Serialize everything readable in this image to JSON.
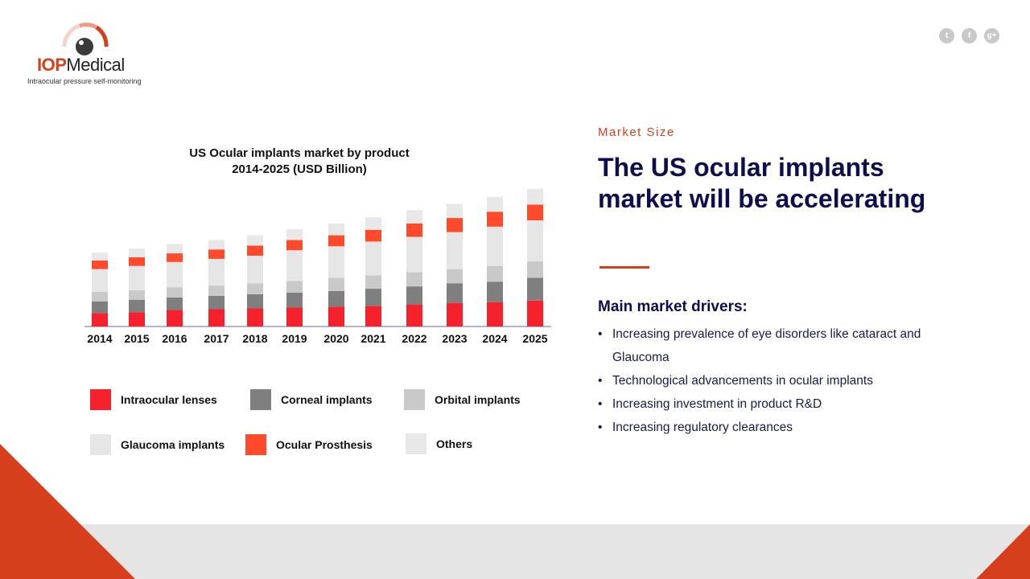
{
  "brand": {
    "name_part1": "IOP",
    "name_part2": "Medical",
    "tagline": "Intraocular pressure self-monitoring",
    "accent_color": "#d63f1c",
    "navy_color": "#0e0e4e"
  },
  "social": [
    {
      "icon": "twitter-icon",
      "glyph": "t"
    },
    {
      "icon": "facebook-icon",
      "glyph": "f"
    },
    {
      "icon": "google-plus-icon",
      "glyph": "g+"
    }
  ],
  "chart_title_line1": "US Ocular implants market by product",
  "chart_title_line2": "2014-2025  (USD Billion)",
  "chart_data": {
    "type": "bar",
    "stacked": true,
    "title": "US Ocular implants market by product 2014-2025  (USD Billion)",
    "categories": [
      "2014",
      "2015",
      "2016",
      "2017",
      "2018",
      "2019",
      "2020",
      "2021",
      "2022",
      "2023",
      "2024",
      "2025"
    ],
    "series": [
      {
        "name": "Intraocular lenses",
        "color": "#f5222d",
        "values": [
          17,
          18,
          21,
          22,
          23,
          24,
          25,
          26,
          28,
          30,
          31,
          33
        ]
      },
      {
        "name": "Corneal implants",
        "color": "#7f7f7f",
        "values": [
          15,
          16,
          16,
          17,
          18,
          19,
          20,
          22,
          23,
          25,
          26,
          29
        ]
      },
      {
        "name": "Orbital implants",
        "color": "#c9c9c9",
        "values": [
          12,
          12,
          13,
          13,
          14,
          15,
          17,
          17,
          18,
          18,
          20,
          21
        ]
      },
      {
        "name": "Glaucoma implants",
        "color": "#e6e6e6",
        "values": [
          29,
          31,
          32,
          34,
          35,
          39,
          40,
          43,
          45,
          47,
          50,
          52
        ]
      },
      {
        "name": "Ocular Prosthesis",
        "color": "#ff4b2b",
        "values": [
          11,
          11,
          11,
          12,
          13,
          13,
          14,
          15,
          17,
          18,
          19,
          20
        ]
      },
      {
        "name": "Others",
        "color": "#e8e8e8",
        "values": [
          10,
          11,
          12,
          12,
          13,
          14,
          15,
          16,
          17,
          18,
          19,
          20
        ]
      }
    ],
    "legend_placement": "bottom",
    "ylim": [
      0,
      180
    ]
  },
  "right": {
    "kicker": "Market  Size",
    "headline": "The US ocular implants market will be accelerating",
    "drivers_title": "Main market drivers:",
    "drivers": [
      "Increasing prevalence of eye disorders like cataract and Glaucoma",
      "Technological advancements in ocular implants",
      "Increasing investment in  product R&D",
      "Increasing regulatory clearances"
    ]
  }
}
